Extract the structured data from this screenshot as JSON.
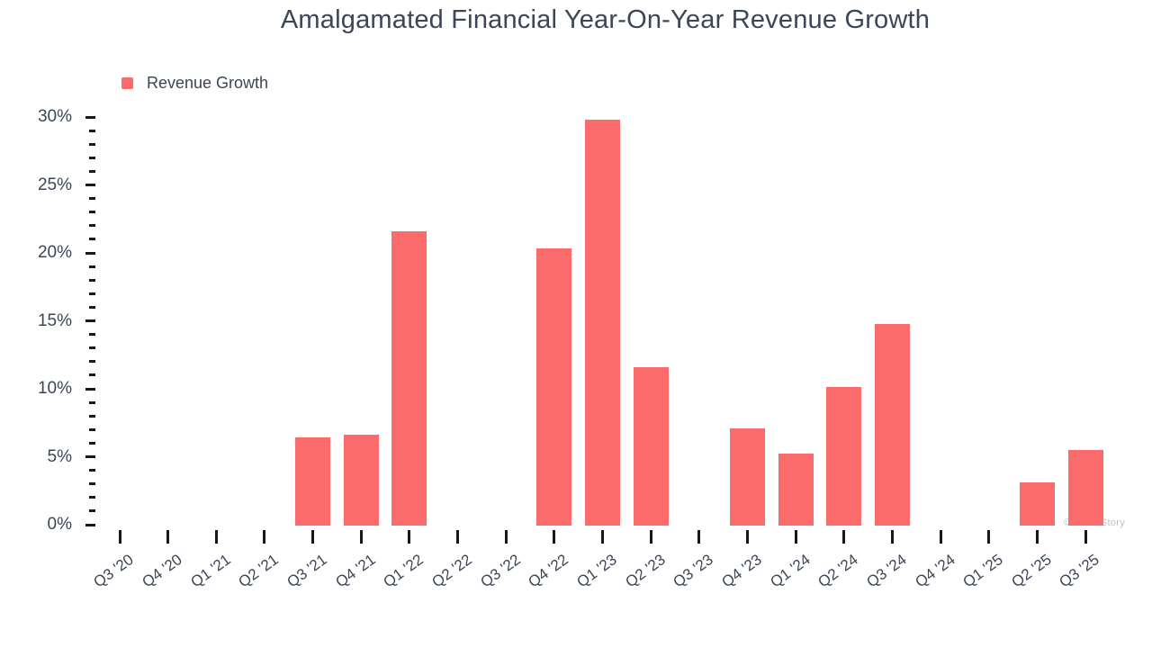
{
  "title": "Amalgamated Financial Year-On-Year Revenue Growth",
  "legend": {
    "label": "Revenue Growth"
  },
  "watermark": "© StockStory",
  "colors": {
    "bar": "#fc6b6b",
    "text": "#3d4656",
    "tick": "#16181d",
    "watermark": "#c2c2c2"
  },
  "chart_data": {
    "type": "bar",
    "title": "Amalgamated Financial Year-On-Year Revenue Growth",
    "series_name": "Revenue Growth",
    "categories": [
      "Q3 '20",
      "Q4 '20",
      "Q1 '21",
      "Q2 '21",
      "Q3 '21",
      "Q4 '21",
      "Q1 '22",
      "Q2 '22",
      "Q3 '22",
      "Q4 '22",
      "Q1 '23",
      "Q2 '23",
      "Q3 '23",
      "Q4 '23",
      "Q1 '24",
      "Q2 '24",
      "Q3 '24",
      "Q4 '24",
      "Q1 '25",
      "Q2 '25",
      "Q3 '25"
    ],
    "values": [
      0,
      0,
      0,
      0,
      6.4,
      6.6,
      21.6,
      0,
      0,
      20.3,
      29.8,
      11.6,
      0,
      7.1,
      5.2,
      10.1,
      14.8,
      0,
      0,
      3.1,
      5.5
    ],
    "unit": "%",
    "xlabel": "",
    "ylabel": "",
    "ylim": [
      0,
      30
    ],
    "ytick_major_step": 5,
    "ytick_minor_step": 1,
    "ytick_labels": [
      "0%",
      "5%",
      "10%",
      "15%",
      "20%",
      "25%",
      "30%"
    ],
    "grid": false,
    "legend_position": "top-left"
  }
}
